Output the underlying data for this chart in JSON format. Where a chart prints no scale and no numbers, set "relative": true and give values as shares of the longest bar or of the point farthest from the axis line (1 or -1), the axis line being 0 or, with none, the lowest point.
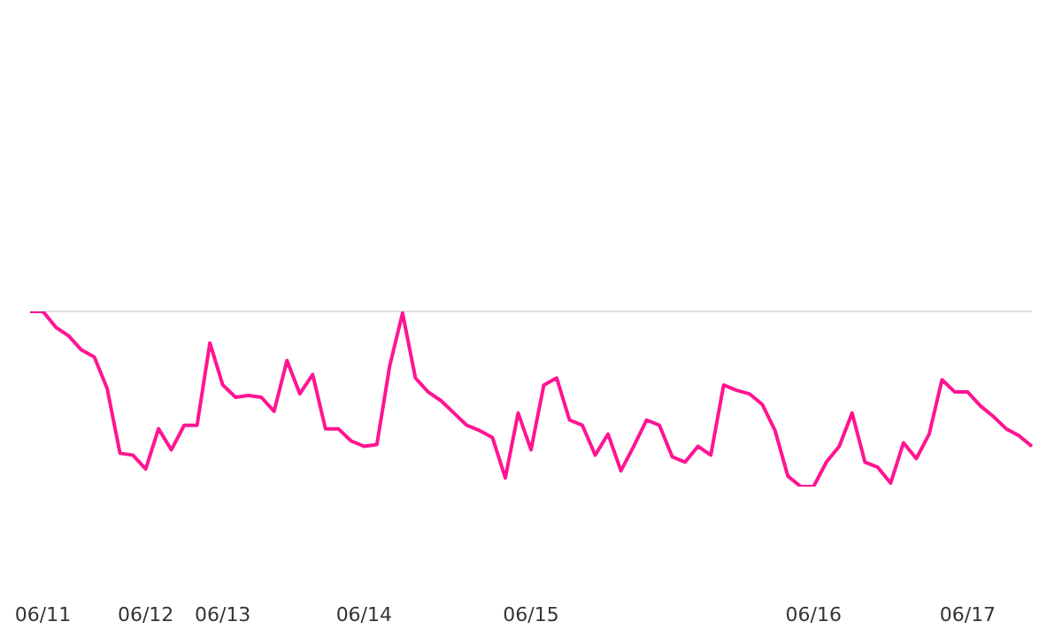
{
  "chart_data": {
    "type": "line",
    "relative": true,
    "ref_lines": [
      {
        "axis": "y",
        "value": 1,
        "color": "#e0e0e0"
      }
    ],
    "marker": "none",
    "line_style": "solid",
    "categories": [
      null,
      "06/11",
      null,
      null,
      null,
      null,
      null,
      null,
      null,
      "06/12",
      null,
      null,
      null,
      null,
      null,
      "06/13",
      null,
      null,
      null,
      null,
      null,
      null,
      null,
      null,
      null,
      null,
      "06/14",
      null,
      null,
      null,
      null,
      null,
      null,
      null,
      null,
      null,
      null,
      null,
      null,
      "06/15",
      null,
      null,
      null,
      null,
      null,
      null,
      null,
      null,
      null,
      null,
      null,
      null,
      null,
      null,
      null,
      null,
      null,
      null,
      null,
      null,
      null,
      "06/16",
      null,
      null,
      null,
      null,
      null,
      null,
      null,
      null,
      null,
      null,
      null,
      "06/17",
      null,
      null,
      null,
      null,
      null
    ],
    "series": [
      {
        "color": "#ff1493",
        "values": [
          1.0,
          1.0,
          0.91,
          0.86,
          0.78,
          0.74,
          0.56,
          0.19,
          0.18,
          0.1,
          0.33,
          0.21,
          0.35,
          0.35,
          0.82,
          0.58,
          0.51,
          0.52,
          0.51,
          0.43,
          0.72,
          0.53,
          0.64,
          0.33,
          0.33,
          0.26,
          0.23,
          0.24,
          0.69,
          0.99,
          0.62,
          0.54,
          0.49,
          0.42,
          0.35,
          0.32,
          0.28,
          0.05,
          0.42,
          0.21,
          0.58,
          0.62,
          0.38,
          0.35,
          0.18,
          0.3,
          0.09,
          0.23,
          0.38,
          0.35,
          0.17,
          0.14,
          0.23,
          0.18,
          0.58,
          0.55,
          0.53,
          0.47,
          0.32,
          0.06,
          0,
          0,
          0.14,
          0.23,
          0.42,
          0.14,
          0.11,
          0.02,
          0.25,
          0.16,
          0.3,
          0.61,
          0.54,
          0.54,
          0.46,
          0.4,
          0.33,
          0.29,
          0.23
        ]
      }
    ]
  }
}
